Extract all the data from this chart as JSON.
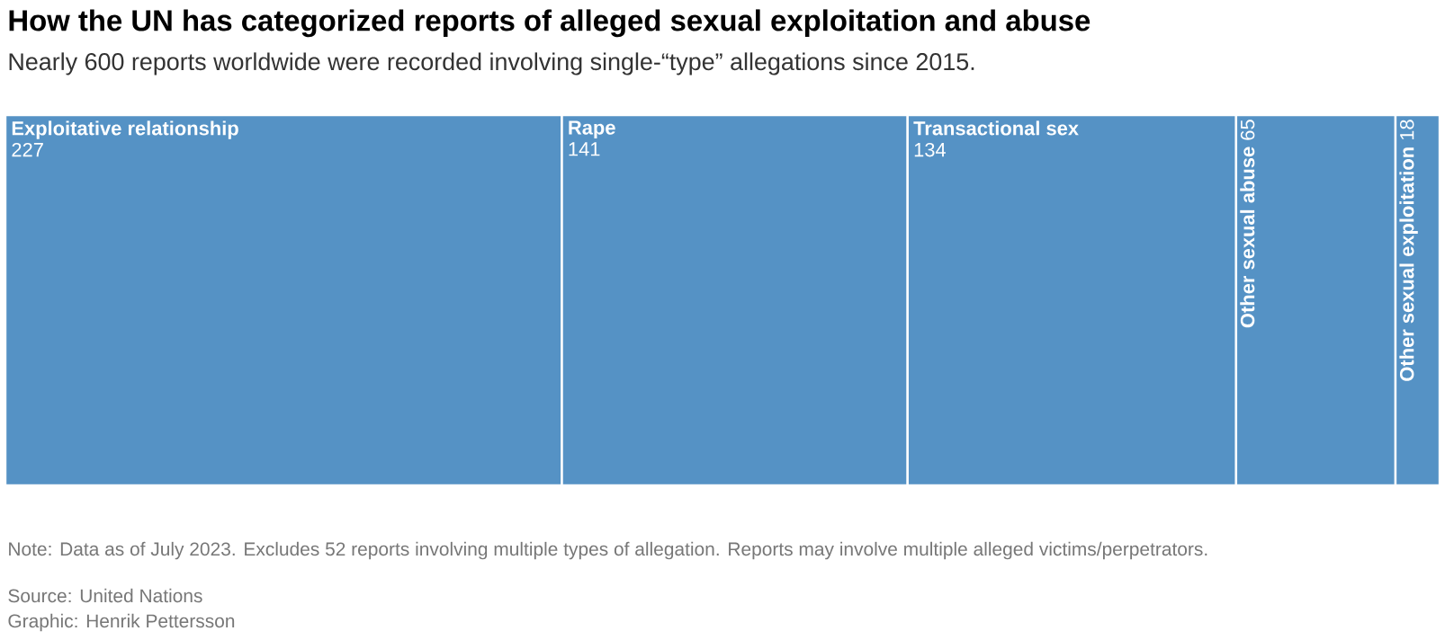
{
  "chart_data": {
    "type": "other",
    "title": "How the UN has categorized reports of alleged sexual exploitation and abuse",
    "subtitle": "Nearly 600 reports worldwide were recorded involving single-“type” allegations since 2015.",
    "categories": [
      "Exploitative relationship",
      "Rape",
      "Transactional sex",
      "Other sexual abuse",
      "Other sexual exploitation"
    ],
    "values": [
      227,
      141,
      134,
      65,
      18
    ],
    "color": "#5592c5",
    "data_labels": true,
    "annotations": [
      "Note: Data as of July 2023. Excludes 52 reports involving multiple types of allegation. Reports may involve multiple alleged victims/perpetrators.",
      "Source: United Nations",
      "Graphic: Henrik Pettersson"
    ]
  }
}
